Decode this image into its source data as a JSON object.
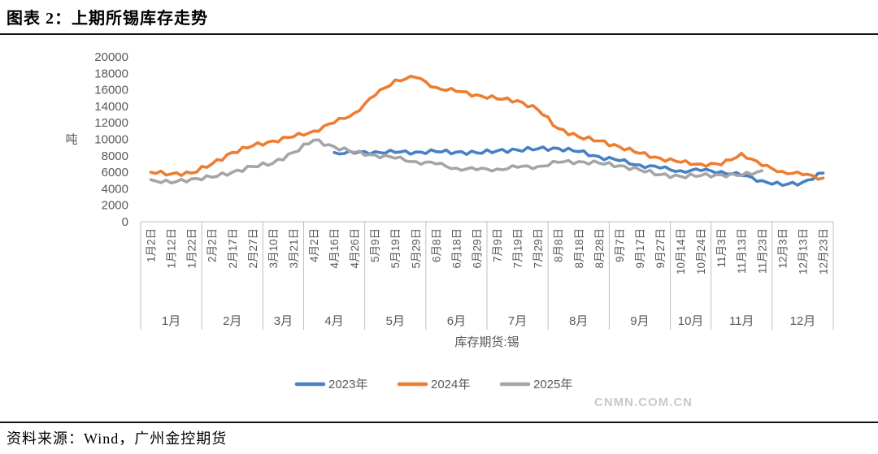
{
  "header": {
    "title": "图表 2：上期所锡库存走势"
  },
  "footer": {
    "source": "资料来源：Wind，广州金控期货"
  },
  "watermark": "CNMN.COM.CN",
  "chart_data": {
    "type": "line",
    "title": "",
    "unit_label": "吨",
    "xlabel": "库存期货:锡",
    "ylim": [
      0,
      20000
    ],
    "ytick_step": 2000,
    "yticks": [
      0,
      2000,
      4000,
      6000,
      8000,
      10000,
      12000,
      14000,
      16000,
      18000,
      20000
    ],
    "grid": false,
    "legend_position": "bottom",
    "axis_color": "#bfbfbf",
    "label_color": "#595959",
    "categories": [
      "1月2日",
      "1月12日",
      "1月22日",
      "2月2日",
      "2月17日",
      "2月27日",
      "3月10日",
      "3月21日",
      "4月2日",
      "4月16日",
      "4月26日",
      "5月9日",
      "5月19日",
      "5月29日",
      "6月8日",
      "6月18日",
      "6月29日",
      "7月9日",
      "7月19日",
      "7月29日",
      "8月8日",
      "8月18日",
      "8月28日",
      "9月7日",
      "9月17日",
      "9月27日",
      "10月14日",
      "10月24日",
      "11月3日",
      "11月13日",
      "11月23日",
      "12月3日",
      "12月13日",
      "12月23日"
    ],
    "month_groups": [
      {
        "label": "1月",
        "count": 3
      },
      {
        "label": "2月",
        "count": 3
      },
      {
        "label": "3月",
        "count": 2
      },
      {
        "label": "4月",
        "count": 3
      },
      {
        "label": "5月",
        "count": 3
      },
      {
        "label": "6月",
        "count": 3
      },
      {
        "label": "7月",
        "count": 3
      },
      {
        "label": "8月",
        "count": 3
      },
      {
        "label": "9月",
        "count": 3
      },
      {
        "label": "10月",
        "count": 2
      },
      {
        "label": "11月",
        "count": 3
      },
      {
        "label": "12月",
        "count": 3
      }
    ],
    "series": [
      {
        "name": "2023年",
        "color": "#4880c4",
        "values": [
          null,
          null,
          null,
          null,
          null,
          null,
          null,
          null,
          null,
          8400,
          8300,
          8500,
          8400,
          8450,
          8500,
          8450,
          8350,
          8600,
          8700,
          8850,
          8900,
          8500,
          7900,
          7400,
          6900,
          6500,
          6200,
          6200,
          6100,
          5600,
          5000,
          4400,
          4800,
          5900
        ]
      },
      {
        "name": "2024年",
        "color": "#ed7d31",
        "values": [
          6000,
          5800,
          5900,
          7000,
          8400,
          9200,
          9800,
          10300,
          11000,
          12000,
          13200,
          15300,
          17200,
          17500,
          16300,
          15800,
          15400,
          14900,
          14700,
          13600,
          11300,
          10300,
          9800,
          9100,
          8300,
          7700,
          7200,
          7000,
          6900,
          8300,
          6800,
          6100,
          5700,
          5300
        ]
      },
      {
        "name": "2025年",
        "color": "#a5a5a5",
        "values": [
          5100,
          4700,
          5200,
          5400,
          6000,
          6700,
          7100,
          8400,
          9900,
          9100,
          8400,
          8100,
          7700,
          7300,
          7000,
          6500,
          6300,
          6400,
          6600,
          6700,
          7200,
          7300,
          7100,
          6800,
          6300,
          5700,
          5500,
          5600,
          5700,
          5600,
          6200,
          null,
          null,
          null
        ]
      }
    ]
  }
}
